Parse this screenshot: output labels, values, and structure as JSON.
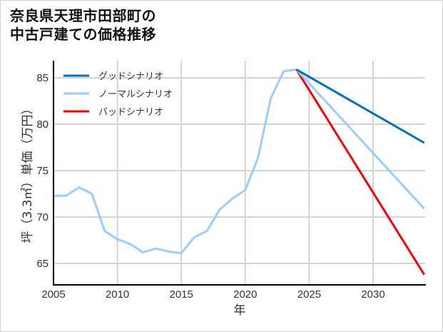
{
  "title": {
    "line1": "奈良県天理市田部町の",
    "line2": "中古戸建ての価格推移"
  },
  "chart_data": {
    "type": "line",
    "title": "奈良県天理市田部町の中古戸建ての価格推移",
    "xlabel": "年",
    "ylabel": "坪（3.3㎡）単価（万円）",
    "xlim": [
      2005,
      2034
    ],
    "ylim": [
      62.8,
      87.3
    ],
    "xticks": [
      2005,
      2010,
      2015,
      2020,
      2025,
      2030
    ],
    "yticks": [
      65,
      70,
      75,
      80,
      85
    ],
    "grid": true,
    "legend_position": "upper left",
    "history": {
      "name": "ノーマルシナリオ",
      "color": "#99ccff",
      "x": [
        2005,
        2006,
        2007,
        2008,
        2009,
        2010,
        2011,
        2012,
        2013,
        2014,
        2015,
        2016,
        2017,
        2018,
        2019,
        2020,
        2021,
        2022,
        2023,
        2024
      ],
      "y": [
        72.3,
        72.3,
        73.2,
        72.5,
        68.5,
        67.6,
        67.1,
        66.2,
        66.6,
        66.3,
        66.1,
        67.8,
        68.5,
        70.8,
        72.0,
        72.9,
        76.4,
        82.8,
        85.7,
        85.9
      ]
    },
    "series": [
      {
        "name": "グッドシナリオ",
        "color": "#0070c0",
        "x": [
          2024,
          2034
        ],
        "y": [
          85.9,
          78.0
        ]
      },
      {
        "name": "ノーマルシナリオ",
        "color": "#99ccff",
        "x": [
          2024,
          2034
        ],
        "y": [
          85.9,
          70.9
        ]
      },
      {
        "name": "バッドシナリオ",
        "color": "#ff0000",
        "x": [
          2024,
          2034
        ],
        "y": [
          85.9,
          63.8
        ]
      }
    ]
  },
  "legend": [
    {
      "label": "グッドシナリオ",
      "color": "#0070c0"
    },
    {
      "label": "ノーマルシナリオ",
      "color": "#99ccff"
    },
    {
      "label": "バッドシナリオ",
      "color": "#ff0000"
    }
  ],
  "axes": {
    "xlabel": "年",
    "ylabel": "坪（3.3㎡）単価（万円）",
    "xtick_labels": [
      "2005",
      "2010",
      "2015",
      "2020",
      "2025",
      "2030"
    ],
    "ytick_labels": [
      "65",
      "70",
      "75",
      "80",
      "85"
    ]
  }
}
